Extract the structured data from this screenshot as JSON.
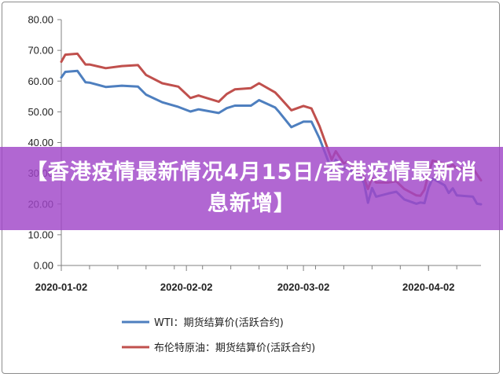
{
  "banner": {
    "title": "【香港疫情最新情况4月15日/香港疫情最新消息新增】"
  },
  "chart_data": {
    "type": "line",
    "title": "",
    "xlabel": "",
    "ylabel": "",
    "ylim": [
      0,
      80
    ],
    "yticks": [
      "0.00",
      "10.00",
      "20.00",
      "30.00",
      "40.00",
      "50.00",
      "60.00",
      "70.00",
      "80.00"
    ],
    "xlim": [
      "2020-01-02",
      "2020-04-15"
    ],
    "xticks": [
      "2020-01-02",
      "2020-02-02",
      "2020-03-02",
      "2020-04-02"
    ],
    "grid": false,
    "legend_position": "bottom",
    "colors": {
      "axis": "#808080",
      "wti": "#4e7fbf",
      "brent": "#c0504d"
    },
    "series": [
      {
        "name": "WTI：期货结算价(活跃合约)",
        "color": "#4e7fbf",
        "x": [
          "2020-01-02",
          "2020-01-03",
          "2020-01-06",
          "2020-01-08",
          "2020-01-09",
          "2020-01-13",
          "2020-01-17",
          "2020-01-21",
          "2020-01-23",
          "2020-01-27",
          "2020-01-31",
          "2020-02-03",
          "2020-02-05",
          "2020-02-10",
          "2020-02-12",
          "2020-02-14",
          "2020-02-18",
          "2020-02-20",
          "2020-02-24",
          "2020-02-25",
          "2020-02-28",
          "2020-03-02",
          "2020-03-04",
          "2020-03-06",
          "2020-03-09",
          "2020-03-10",
          "2020-03-12",
          "2020-03-13",
          "2020-03-16",
          "2020-03-17",
          "2020-03-18",
          "2020-03-19",
          "2020-03-20",
          "2020-03-23",
          "2020-03-25",
          "2020-03-27",
          "2020-03-30",
          "2020-03-31",
          "2020-04-01",
          "2020-04-02",
          "2020-04-03",
          "2020-04-06",
          "2020-04-07",
          "2020-04-08",
          "2020-04-09",
          "2020-04-13",
          "2020-04-14",
          "2020-04-15"
        ],
        "values": [
          61.2,
          63.0,
          63.3,
          59.6,
          59.5,
          58.1,
          58.5,
          58.2,
          55.6,
          53.1,
          51.6,
          50.1,
          50.8,
          49.6,
          51.2,
          52.0,
          52.0,
          53.8,
          51.4,
          49.9,
          45.0,
          46.8,
          46.8,
          41.3,
          31.1,
          34.4,
          31.5,
          31.7,
          28.7,
          26.9,
          20.4,
          25.2,
          22.4,
          23.4,
          24.0,
          21.5,
          20.1,
          20.5,
          20.3,
          25.3,
          28.3,
          26.1,
          23.6,
          25.1,
          22.8,
          22.4,
          20.1,
          19.9
        ]
      },
      {
        "name": "布伦特原油：期货结算价(活跃合约)",
        "color": "#c0504d",
        "x": [
          "2020-01-02",
          "2020-01-03",
          "2020-01-06",
          "2020-01-08",
          "2020-01-09",
          "2020-01-13",
          "2020-01-17",
          "2020-01-21",
          "2020-01-23",
          "2020-01-27",
          "2020-01-31",
          "2020-02-03",
          "2020-02-05",
          "2020-02-10",
          "2020-02-12",
          "2020-02-14",
          "2020-02-18",
          "2020-02-20",
          "2020-02-24",
          "2020-02-25",
          "2020-02-28",
          "2020-03-02",
          "2020-03-04",
          "2020-03-06",
          "2020-03-09",
          "2020-03-10",
          "2020-03-12",
          "2020-03-13",
          "2020-03-16",
          "2020-03-17",
          "2020-03-18",
          "2020-03-19",
          "2020-03-20",
          "2020-03-23",
          "2020-03-25",
          "2020-03-27",
          "2020-03-30",
          "2020-03-31",
          "2020-04-01",
          "2020-04-02",
          "2020-04-03",
          "2020-04-06",
          "2020-04-07",
          "2020-04-08",
          "2020-04-09",
          "2020-04-13",
          "2020-04-14",
          "2020-04-15"
        ],
        "values": [
          66.3,
          68.6,
          68.9,
          65.4,
          65.4,
          64.2,
          64.9,
          65.2,
          62.0,
          59.3,
          58.2,
          54.5,
          55.3,
          53.3,
          55.8,
          57.3,
          57.7,
          59.3,
          56.3,
          54.9,
          50.5,
          51.9,
          51.1,
          45.3,
          34.4,
          37.2,
          33.2,
          33.9,
          30.0,
          28.7,
          24.9,
          28.5,
          27.0,
          27.0,
          27.4,
          24.9,
          22.8,
          22.7,
          24.7,
          29.9,
          34.1,
          33.1,
          31.9,
          32.8,
          31.5,
          31.7,
          29.6,
          27.7
        ]
      }
    ]
  }
}
